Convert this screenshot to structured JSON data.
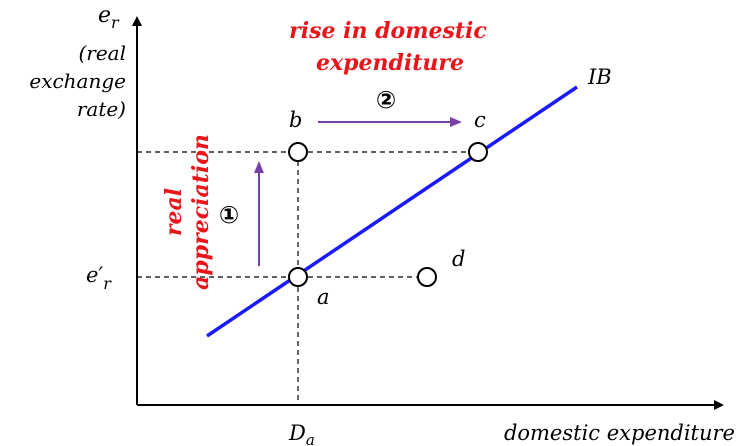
{
  "axes": {
    "y_label": {
      "symbol": "e",
      "sub": "r",
      "lines": [
        "(real",
        "exchange",
        "rate)"
      ]
    },
    "x_label": "domestic expenditure",
    "x_tick": {
      "symbol": "D",
      "sub": "a"
    },
    "y_tick": {
      "symbol": "e′",
      "sub": "r"
    }
  },
  "line_label": "IB",
  "points": {
    "a": "a",
    "b": "b",
    "c": "c",
    "d": "d"
  },
  "annotations": {
    "top": [
      "rise in domestic",
      "expenditure"
    ],
    "left": [
      "real",
      "appreciation"
    ],
    "step1": "①",
    "step2": "②"
  },
  "colors": {
    "line": "#1a1aff",
    "arrow": "#7b3fa8",
    "annotation": "#e8151b",
    "axis": "#000000"
  }
}
